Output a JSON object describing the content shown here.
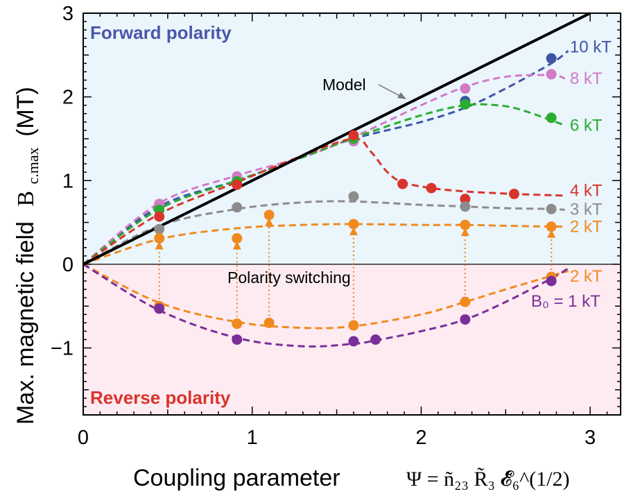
{
  "chart_data": {
    "type": "scatter",
    "title": "",
    "xlabel": "Coupling parameter",
    "xlabel_formula": "Ψ = ñ₂₃ R̃₃ 𝓔̃₆^(1/2)",
    "ylabel": "Max. magnetic field",
    "ylabel_symbol": "B",
    "ylabel_subscript": "c.max",
    "ylabel_unit": "(MT)",
    "xlim": [
      0,
      3.18
    ],
    "ylim": [
      -1.8,
      3
    ],
    "xticks": [
      0,
      1,
      2,
      3
    ],
    "yticks": [
      -1,
      0,
      1,
      2,
      3
    ],
    "xtick_labels": [
      "0",
      "1",
      "2",
      "3"
    ],
    "ytick_labels": [
      "−1",
      "0",
      "1",
      "2",
      "3"
    ],
    "grid": false,
    "regions": [
      {
        "name": "forward",
        "label": "Forward polarity",
        "y_from": 0,
        "y_to": 3,
        "color": "#eaf5fc",
        "label_color": "#4a57a8"
      },
      {
        "name": "reverse",
        "label": "Reverse polarity",
        "y_from": -1.8,
        "y_to": 0,
        "color": "#fdebf1",
        "label_color": "#d9342b"
      }
    ],
    "model_line": {
      "label": "Model",
      "x": [
        0,
        3
      ],
      "y": [
        0,
        3
      ],
      "color": "#000000"
    },
    "series": [
      {
        "name": "10 kT",
        "color": "#3e55a6",
        "x": [
          0.45,
          0.91,
          1.6,
          2.26,
          2.77
        ],
        "y": [
          0.69,
          1.0,
          1.51,
          1.95,
          2.46
        ],
        "curve_x": [
          0,
          0.45,
          0.91,
          1.3,
          1.6,
          2.0,
          2.26,
          2.5,
          2.77,
          2.87
        ],
        "curve_y": [
          0,
          0.69,
          1.0,
          1.28,
          1.5,
          1.7,
          1.87,
          2.1,
          2.4,
          2.55
        ]
      },
      {
        "name": "8 kT",
        "color": "#d27ac6",
        "x": [
          0.45,
          0.91,
          1.6,
          2.26,
          2.77
        ],
        "y": [
          0.72,
          1.05,
          1.47,
          2.1,
          2.27
        ],
        "curve_x": [
          0,
          0.45,
          0.91,
          1.3,
          1.6,
          2.0,
          2.26,
          2.5,
          2.77,
          2.85
        ],
        "curve_y": [
          0,
          0.73,
          1.06,
          1.28,
          1.52,
          1.9,
          2.12,
          2.24,
          2.26,
          2.22
        ]
      },
      {
        "name": "6 kT",
        "color": "#29ad2e",
        "x": [
          0.45,
          0.91,
          1.6,
          2.26,
          2.77
        ],
        "y": [
          0.65,
          0.99,
          1.5,
          1.91,
          1.75
        ],
        "curve_x": [
          0,
          0.45,
          0.91,
          1.3,
          1.6,
          2.0,
          2.26,
          2.45,
          2.6,
          2.85
        ],
        "curve_y": [
          0,
          0.66,
          1.0,
          1.28,
          1.51,
          1.78,
          1.9,
          1.9,
          1.84,
          1.66
        ]
      },
      {
        "name": "4 kT",
        "color": "#d9342b",
        "x": [
          0.45,
          0.91,
          1.6,
          1.89,
          2.06,
          2.26,
          2.55
        ],
        "y": [
          0.57,
          0.95,
          1.54,
          0.96,
          0.91,
          0.78,
          0.84
        ],
        "curve_x": [
          0,
          0.45,
          0.91,
          1.3,
          1.6,
          1.7,
          1.8,
          1.89,
          2.06,
          2.26,
          2.55,
          2.85
        ],
        "curve_y": [
          0,
          0.6,
          0.98,
          1.3,
          1.5,
          1.35,
          1.1,
          0.98,
          0.91,
          0.87,
          0.84,
          0.82
        ]
      },
      {
        "name": "3 kT",
        "color": "#8c8c8c",
        "x": [
          0.45,
          0.91,
          1.6,
          2.26,
          2.77
        ],
        "y": [
          0.42,
          0.68,
          0.81,
          0.69,
          0.66
        ],
        "curve_x": [
          0,
          0.45,
          0.91,
          1.3,
          1.6,
          2.0,
          2.26,
          2.5,
          2.77,
          2.85
        ],
        "curve_y": [
          0,
          0.46,
          0.66,
          0.74,
          0.75,
          0.71,
          0.69,
          0.67,
          0.66,
          0.65
        ]
      },
      {
        "name": "2 kT",
        "color": "#f08a1f",
        "x": [
          0.45,
          0.91,
          1.1,
          1.6,
          2.26,
          2.77
        ],
        "y": [
          0.31,
          0.31,
          0.59,
          0.48,
          0.47,
          0.45
        ],
        "curve_x": [
          0,
          0.45,
          0.91,
          1.3,
          1.6,
          2.0,
          2.26,
          2.5,
          2.77,
          2.85
        ],
        "curve_y": [
          0,
          0.3,
          0.43,
          0.47,
          0.48,
          0.47,
          0.47,
          0.46,
          0.45,
          0.45
        ]
      },
      {
        "name": "2 kT",
        "color": "#f08a1f",
        "x": [
          0.45,
          0.91,
          1.1,
          1.6,
          2.26,
          2.77
        ],
        "y": [
          -0.5,
          -0.71,
          -0.7,
          -0.73,
          -0.45,
          -0.15
        ],
        "curve_x": [
          0,
          0.45,
          0.91,
          1.3,
          1.6,
          2.0,
          2.26,
          2.5,
          2.77,
          2.87
        ],
        "curve_y": [
          0,
          -0.46,
          -0.69,
          -0.76,
          -0.74,
          -0.6,
          -0.45,
          -0.3,
          -0.14,
          -0.08
        ]
      },
      {
        "name": "B₀ = 1 kT",
        "color": "#7a2e9a",
        "x": [
          0.45,
          0.91,
          1.6,
          1.73,
          2.26,
          2.77
        ],
        "y": [
          -0.53,
          -0.9,
          -0.92,
          -0.9,
          -0.66,
          -0.2
        ],
        "curve_x": [
          0,
          0.45,
          0.91,
          1.3,
          1.6,
          1.73,
          2.0,
          2.26,
          2.5,
          2.77,
          2.87
        ],
        "curve_y": [
          0,
          -0.55,
          -0.88,
          -0.98,
          -0.95,
          -0.91,
          -0.8,
          -0.66,
          -0.45,
          -0.17,
          -0.05
        ]
      }
    ],
    "series_labels": [
      {
        "text": "10 kT",
        "x": 2.88,
        "y": 2.6,
        "color": "#3e55a6"
      },
      {
        "text": "8 kT",
        "x": 2.88,
        "y": 2.22,
        "color": "#d27ac6"
      },
      {
        "text": "6 kT",
        "x": 2.88,
        "y": 1.66,
        "color": "#29ad2e"
      },
      {
        "text": "4 kT",
        "x": 2.88,
        "y": 0.88,
        "color": "#d9342b"
      },
      {
        "text": "3 kT",
        "x": 2.88,
        "y": 0.66,
        "color": "#8c8c8c"
      },
      {
        "text": "2 kT",
        "x": 2.88,
        "y": 0.45,
        "color": "#f08a1f"
      },
      {
        "text": "2 kT",
        "x": 2.88,
        "y": -0.14,
        "color": "#f08a1f"
      },
      {
        "text": "B₀ = 1 kT",
        "x": 2.65,
        "y": -0.44,
        "color": "#7a2e9a"
      }
    ],
    "switching": {
      "label": "Polarity switching",
      "color": "#f08a1f",
      "arrows": [
        {
          "x": 0.45,
          "from": -0.5,
          "to": 0.31
        },
        {
          "x": 0.91,
          "from": -0.71,
          "to": 0.31
        },
        {
          "x": 1.1,
          "from": -0.7,
          "to": 0.59
        },
        {
          "x": 1.6,
          "from": -0.73,
          "to": 0.48
        },
        {
          "x": 2.26,
          "from": -0.45,
          "to": 0.47
        },
        {
          "x": 2.77,
          "from": -0.15,
          "to": 0.45
        }
      ]
    }
  }
}
